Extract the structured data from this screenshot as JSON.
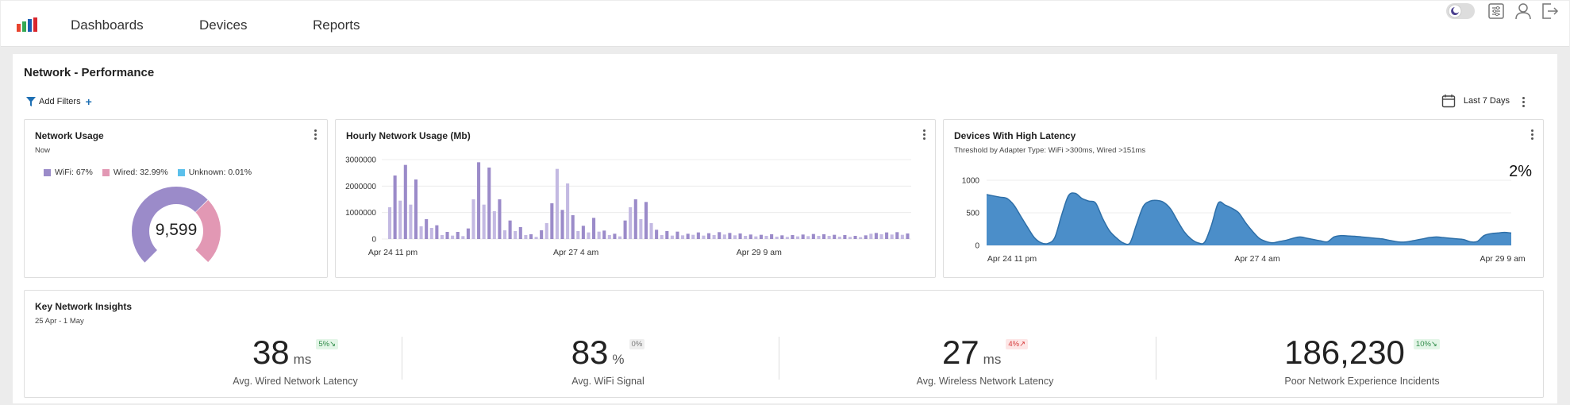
{
  "nav": {
    "items": [
      {
        "label": "Dashboards"
      },
      {
        "label": "Devices"
      },
      {
        "label": "Reports"
      }
    ]
  },
  "page": {
    "title": "Network - Performance",
    "add_filters_label": "Add Filters",
    "date_range_label": "Last 7 Days"
  },
  "network_usage": {
    "title": "Network Usage",
    "subtitle": "Now",
    "total": "9,599",
    "legend": [
      {
        "label": "WiFi: 67%",
        "color": "#9b8bc9"
      },
      {
        "label": "Wired: 32.99%",
        "color": "#e298b4"
      },
      {
        "label": "Unknown: 0.01%",
        "color": "#5bc0eb"
      }
    ]
  },
  "hourly_usage": {
    "title": "Hourly Network Usage (Mb)"
  },
  "high_latency": {
    "title": "Devices With High Latency",
    "subtitle": "Threshold by Adapter Type: WiFi >300ms, Wired >151ms",
    "percent": "2%"
  },
  "insights": {
    "title": "Key Network Insights",
    "subtitle": "25 Apr - 1 May",
    "kpis": [
      {
        "value": "38",
        "unit": "ms",
        "badge": "5%↘",
        "badge_type": "green",
        "label": "Avg. Wired Network Latency"
      },
      {
        "value": "83",
        "unit": "%",
        "badge": "0%",
        "badge_type": "gray",
        "label": "Avg. WiFi Signal"
      },
      {
        "value": "27",
        "unit": "ms",
        "badge": "4%↗",
        "badge_type": "red",
        "label": "Avg. Wireless Network Latency"
      },
      {
        "value": "186,230",
        "unit": "",
        "badge": "10%↘",
        "badge_type": "green",
        "label": "Poor Network Experience Incidents"
      }
    ]
  },
  "colors": {
    "bar_light": "#c3b9e2",
    "bar_dark": "#9b8bc9",
    "area": "#4b8ec9",
    "area_stroke": "#2e6fa8"
  },
  "chart_data": [
    {
      "type": "pie",
      "categories": [
        "WiFi",
        "Wired",
        "Unknown"
      ],
      "values": [
        67,
        32.99,
        0.01
      ],
      "title": "Network Usage"
    },
    {
      "type": "bar",
      "title": "Hourly Network Usage (Mb)",
      "ylim": [
        0,
        3000000
      ],
      "yticks": [
        "0",
        "1000000",
        "2000000",
        "3000000"
      ],
      "xticks": [
        "Apr 24 11 pm",
        "Apr 27 4 am",
        "Apr 29 9 am"
      ],
      "xtick_index": [
        0,
        35,
        70
      ],
      "values": [
        1200000,
        2400000,
        1450000,
        2800000,
        1300000,
        2250000,
        480000,
        750000,
        420000,
        520000,
        150000,
        270000,
        130000,
        270000,
        110000,
        400000,
        1500000,
        2900000,
        1300000,
        2700000,
        1050000,
        1500000,
        330000,
        700000,
        300000,
        450000,
        150000,
        180000,
        80000,
        330000,
        600000,
        1350000,
        2650000,
        1100000,
        2100000,
        900000,
        300000,
        500000,
        250000,
        800000,
        280000,
        320000,
        150000,
        200000,
        100000,
        700000,
        1200000,
        1500000,
        750000,
        1400000,
        600000,
        350000,
        150000,
        300000,
        130000,
        280000,
        140000,
        200000,
        160000,
        250000,
        130000,
        220000,
        150000,
        260000,
        170000,
        230000,
        140000,
        210000,
        120000,
        170000,
        100000,
        160000,
        120000,
        180000,
        90000,
        140000,
        80000,
        150000,
        100000,
        170000,
        110000,
        190000,
        120000,
        180000,
        120000,
        160000,
        90000,
        150000,
        80000,
        120000,
        70000,
        140000,
        200000,
        230000,
        180000,
        250000,
        170000,
        260000,
        160000,
        210000
      ]
    },
    {
      "type": "area",
      "title": "Devices With High Latency",
      "ylim": [
        0,
        1000
      ],
      "yticks": [
        "0",
        "500",
        "1000"
      ],
      "xticks": [
        "Apr 24 11 pm",
        "Apr 27 4 am",
        "Apr 29 9 am"
      ],
      "xtick_index": [
        0,
        36,
        72
      ],
      "values": [
        780,
        760,
        740,
        720,
        620,
        450,
        280,
        120,
        40,
        30,
        120,
        460,
        760,
        800,
        720,
        680,
        650,
        420,
        230,
        120,
        40,
        30,
        320,
        600,
        680,
        690,
        660,
        560,
        380,
        210,
        100,
        40,
        50,
        310,
        650,
        620,
        570,
        500,
        350,
        220,
        110,
        60,
        40,
        60,
        80,
        110,
        130,
        110,
        90,
        70,
        55,
        130,
        150,
        145,
        140,
        130,
        120,
        110,
        100,
        80,
        60,
        50,
        60,
        80,
        100,
        120,
        130,
        120,
        110,
        100,
        90,
        55,
        60,
        150,
        180,
        190,
        200,
        190
      ]
    }
  ]
}
